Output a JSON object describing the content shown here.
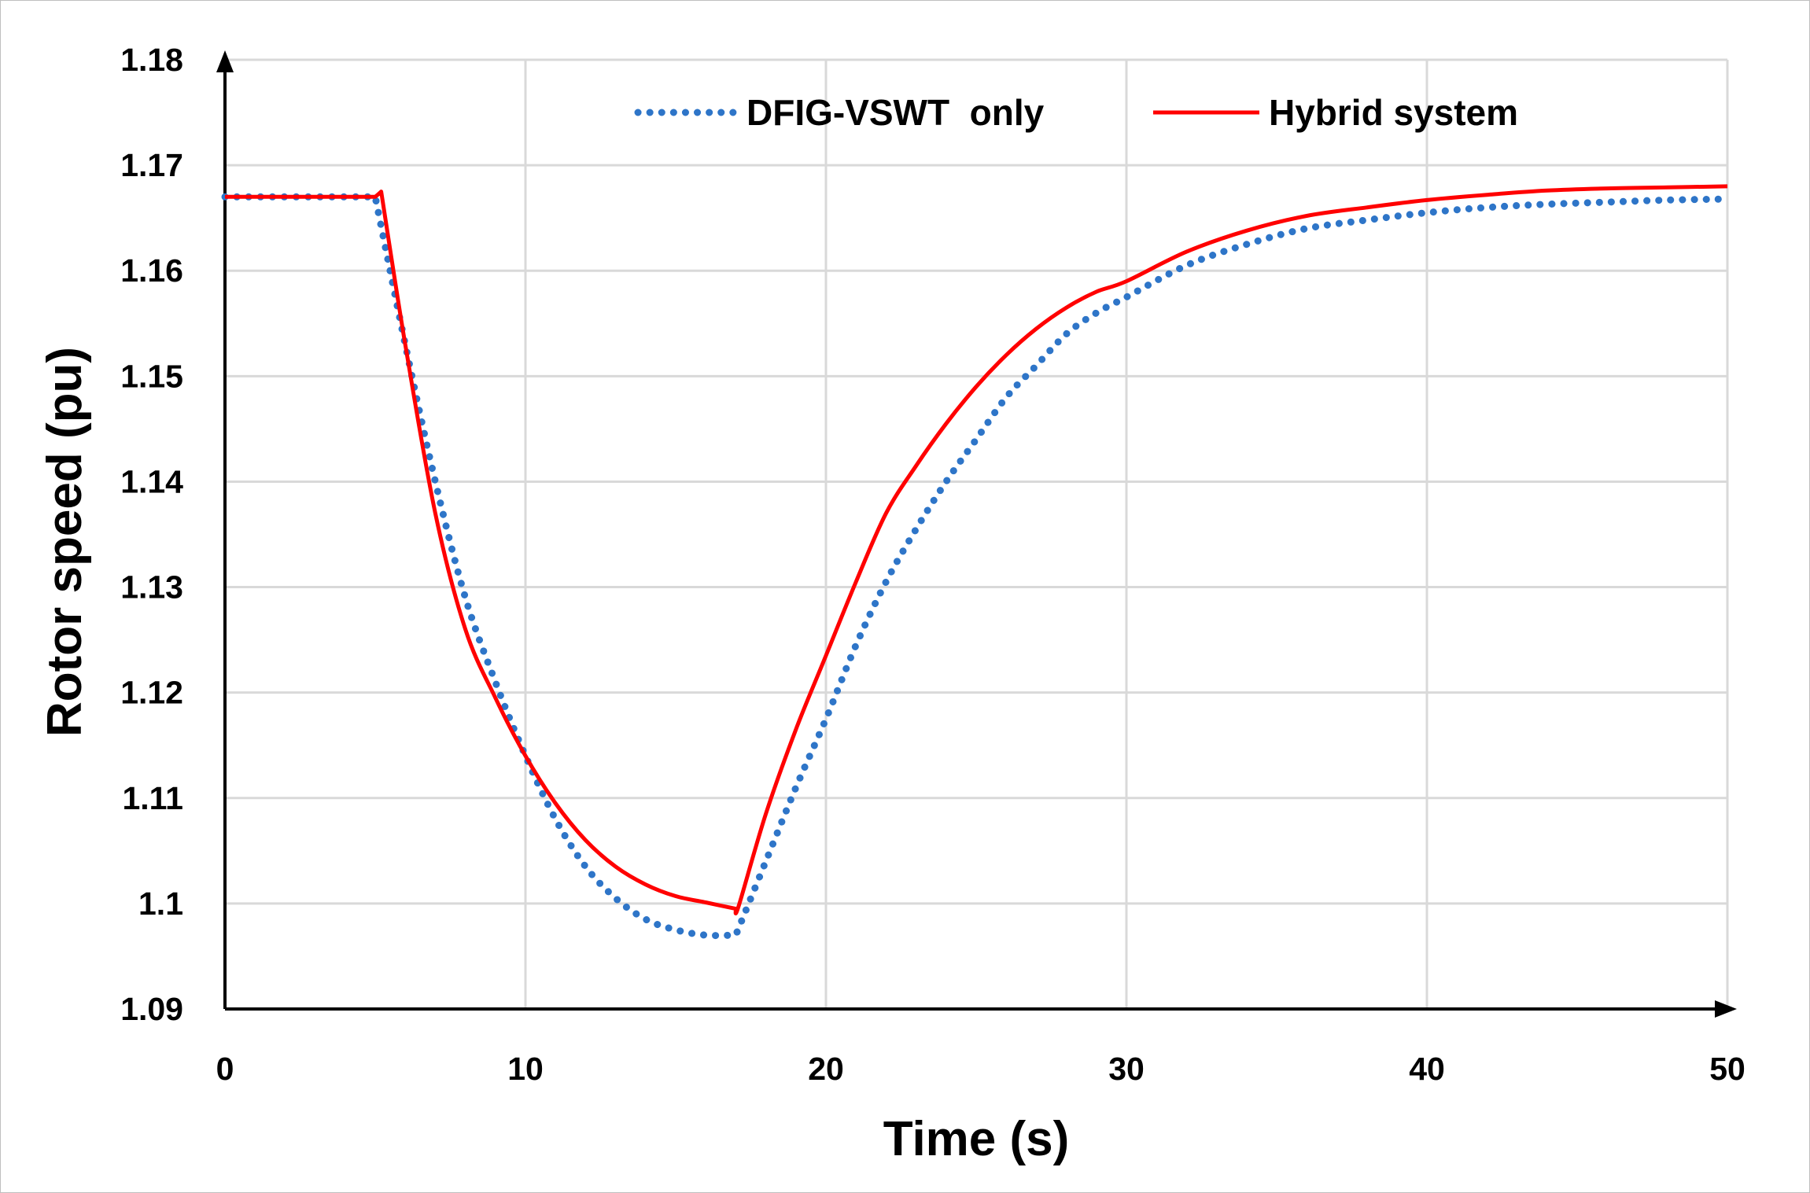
{
  "chart_data": {
    "type": "line",
    "title": "",
    "xlabel": "Time (s)",
    "ylabel": "Rotor speed (pu)",
    "xlim": [
      0,
      50
    ],
    "ylim": [
      1.09,
      1.18
    ],
    "x_ticks": [
      0,
      10,
      20,
      30,
      40,
      50
    ],
    "x_tick_labels": [
      "0",
      "10",
      "20",
      "30",
      "40",
      "50"
    ],
    "y_ticks": [
      1.09,
      1.1,
      1.11,
      1.12,
      1.13,
      1.14,
      1.15,
      1.16,
      1.17,
      1.18
    ],
    "y_tick_labels": [
      "1.09",
      "1.1",
      "1.11",
      "1.12",
      "1.13",
      "1.14",
      "1.15",
      "1.16",
      "1.17",
      "1.18"
    ],
    "grid": true,
    "legend_position": "top",
    "series": [
      {
        "name": "DFIG-VSWT  only",
        "color": "#2E75C8",
        "style": "dotted",
        "x": [
          0,
          5,
          6,
          7,
          8,
          9,
          10,
          11,
          12,
          13,
          14,
          15,
          16,
          17,
          18,
          19,
          20,
          21,
          22,
          23,
          24,
          25,
          26,
          27,
          28,
          29,
          30,
          32,
          34,
          36,
          38,
          40,
          42,
          44,
          46,
          48,
          50
        ],
        "values": [
          1.167,
          1.167,
          1.153,
          1.14,
          1.129,
          1.121,
          1.114,
          1.108,
          1.1035,
          1.1005,
          1.0985,
          1.0975,
          1.097,
          1.097,
          1.104,
          1.111,
          1.1175,
          1.1245,
          1.1305,
          1.1355,
          1.14,
          1.144,
          1.148,
          1.151,
          1.154,
          1.156,
          1.1575,
          1.1605,
          1.1625,
          1.164,
          1.1648,
          1.1655,
          1.166,
          1.1663,
          1.1665,
          1.1667,
          1.1668
        ]
      },
      {
        "name": "Hybrid system",
        "color": "#FF0000",
        "style": "solid",
        "x": [
          0,
          5,
          5.2,
          6,
          7,
          8,
          9,
          10,
          11,
          12,
          13,
          14,
          15,
          16,
          17,
          17.1,
          18,
          19,
          20,
          21,
          22,
          23,
          24,
          25,
          26,
          27,
          28,
          29,
          30,
          32,
          34,
          36,
          38,
          40,
          42,
          44,
          46,
          48,
          50
        ],
        "values": [
          1.167,
          1.167,
          1.1675,
          1.153,
          1.137,
          1.126,
          1.1195,
          1.114,
          1.1095,
          1.106,
          1.1035,
          1.1018,
          1.1007,
          1.1001,
          1.0995,
          1.0998,
          1.1085,
          1.1165,
          1.1235,
          1.1305,
          1.137,
          1.1415,
          1.1455,
          1.149,
          1.152,
          1.1545,
          1.1565,
          1.158,
          1.159,
          1.1618,
          1.1638,
          1.1652,
          1.166,
          1.1667,
          1.1672,
          1.1676,
          1.1678,
          1.1679,
          1.168
        ]
      }
    ]
  }
}
